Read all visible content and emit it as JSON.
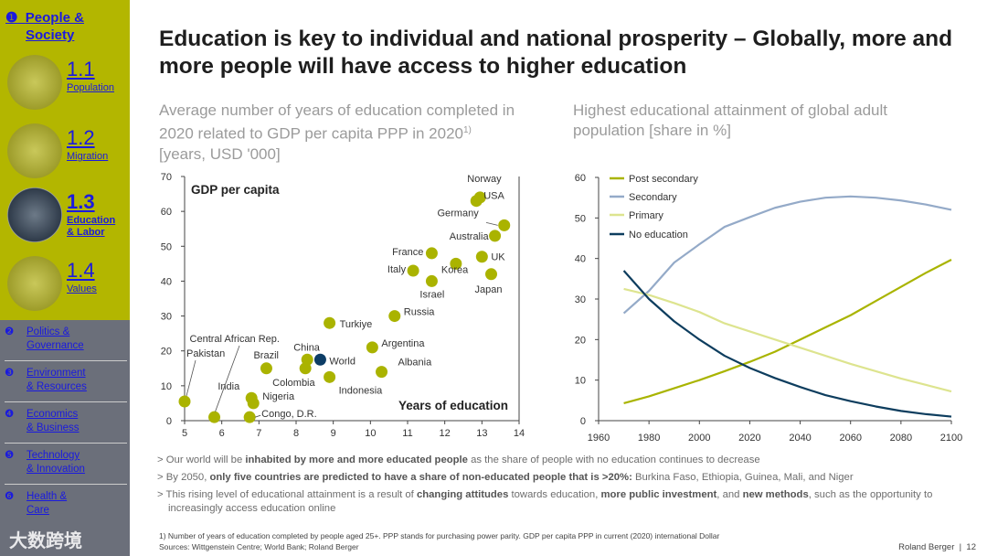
{
  "sidebar": {
    "section1": {
      "bullet": "❶",
      "label_line1": "People &",
      "label_line2": "Society"
    },
    "subs": [
      {
        "num": "1.1",
        "label": "Population"
      },
      {
        "num": "1.2",
        "label": "Migration"
      },
      {
        "num": "1.3",
        "label": "Education",
        "label2": "& Labor"
      },
      {
        "num": "1.4",
        "label": "Values"
      }
    ],
    "others": [
      {
        "bullet": "❷",
        "l1": "Politics &",
        "l2": "Governance"
      },
      {
        "bullet": "❸",
        "l1": "Environment",
        "l2": "& Resources"
      },
      {
        "bullet": "❹",
        "l1": "Economics",
        "l2": "& Business"
      },
      {
        "bullet": "❺",
        "l1": "Technology",
        "l2": "& Innovation"
      },
      {
        "bullet": "❻",
        "l1": "Health &",
        "l2": "Care"
      }
    ],
    "watermark": "大数跨境"
  },
  "title": "Education is key to individual and national prosperity – Globally, more and more people will have access to higher education",
  "chart_data": [
    {
      "type": "scatter",
      "title": "Average number of years of education completed in 2020 related to GDP per capita PPP in 2020",
      "title_sup": "1)",
      "units": "[years, USD '000]",
      "xlabel": "Years of education",
      "ylabel": "GDP per capita",
      "xlim": [
        5,
        14
      ],
      "ylim": [
        0,
        70
      ],
      "xticks": [
        5,
        6,
        7,
        8,
        9,
        10,
        11,
        12,
        13,
        14
      ],
      "yticks": [
        0,
        10,
        20,
        30,
        40,
        50,
        60,
        70
      ],
      "points": [
        {
          "name": "Norway",
          "x": 12.95,
          "y": 64
        },
        {
          "name": "USA",
          "x": 12.85,
          "y": 63
        },
        {
          "name": "Germany",
          "x": 13.6,
          "y": 56
        },
        {
          "name": "Australia",
          "x": 13.35,
          "y": 53
        },
        {
          "name": "France",
          "x": 11.65,
          "y": 48
        },
        {
          "name": "UK",
          "x": 13.0,
          "y": 47
        },
        {
          "name": "Korea",
          "x": 12.3,
          "y": 45
        },
        {
          "name": "Italy",
          "x": 11.15,
          "y": 43
        },
        {
          "name": "Japan",
          "x": 13.25,
          "y": 42
        },
        {
          "name": "Israel",
          "x": 11.65,
          "y": 40
        },
        {
          "name": "Russia",
          "x": 10.65,
          "y": 30
        },
        {
          "name": "Turkiye",
          "x": 8.9,
          "y": 28
        },
        {
          "name": "Argentina",
          "x": 10.05,
          "y": 21
        },
        {
          "name": "China",
          "x": 8.3,
          "y": 17.5
        },
        {
          "name": "World",
          "x": 8.65,
          "y": 17.5,
          "highlight": true
        },
        {
          "name": "Colombia",
          "x": 8.25,
          "y": 15
        },
        {
          "name": "Brazil",
          "x": 7.2,
          "y": 15
        },
        {
          "name": "Albania",
          "x": 10.3,
          "y": 14
        },
        {
          "name": "Indonesia",
          "x": 8.9,
          "y": 12.5
        },
        {
          "name": "India",
          "x": 6.8,
          "y": 6.5
        },
        {
          "name": "Nigeria",
          "x": 6.85,
          "y": 5
        },
        {
          "name": "Pakistan",
          "x": 5.0,
          "y": 5.5
        },
        {
          "name": "Central African Rep.",
          "x": 5.8,
          "y": 1
        },
        {
          "name": "Congo, D.R.",
          "x": 6.75,
          "y": 1
        }
      ],
      "colors": {
        "point": "#aab300",
        "highlight": "#0d3d66"
      }
    },
    {
      "type": "line",
      "title": "Highest educational attainment of global adult population [share in %]",
      "xlim": [
        1960,
        2100
      ],
      "ylim": [
        0,
        60
      ],
      "xticks": [
        1960,
        1980,
        2000,
        2020,
        2040,
        2060,
        2080,
        2100
      ],
      "yticks": [
        0,
        10,
        20,
        30,
        40,
        50,
        60
      ],
      "legend": "top-left",
      "x": [
        1970,
        1980,
        1990,
        2000,
        2010,
        2020,
        2030,
        2040,
        2050,
        2060,
        2070,
        2080,
        2090,
        2100
      ],
      "series": [
        {
          "name": "Post secondary",
          "color": "#a9b400",
          "values": [
            4.3,
            6,
            8,
            10,
            12.2,
            14.5,
            17,
            20,
            23,
            26,
            29.5,
            33,
            36.5,
            39.7
          ]
        },
        {
          "name": "Secondary",
          "color": "#94aac8",
          "values": [
            26.5,
            32,
            39,
            43.5,
            47.8,
            50.2,
            52.5,
            54,
            55,
            55.3,
            55,
            54.3,
            53.3,
            52
          ]
        },
        {
          "name": "Primary",
          "color": "#dde48f",
          "values": [
            32.5,
            31,
            29,
            26.8,
            24,
            22,
            20,
            18,
            16,
            14,
            12.2,
            10.4,
            8.8,
            7.2
          ]
        },
        {
          "name": "No education",
          "color": "#0d3d5e",
          "values": [
            37,
            30,
            24.5,
            20,
            16,
            13,
            10.5,
            8.3,
            6.3,
            4.8,
            3.5,
            2.4,
            1.6,
            1
          ]
        }
      ]
    }
  ],
  "bullets": [
    {
      "pre": "Our world will be ",
      "b1": "inhabited by more and more educated people",
      "post": " as the share of people with no education continues to decrease"
    },
    {
      "pre": "By 2050, ",
      "b1": "only five countries are predicted to have a share of non-educated people that is >20%:",
      "post": " Burkina Faso, Ethiopia, Guinea, Mali, and Niger"
    },
    {
      "pre": "This rising level of educational attainment is a result of ",
      "b1": "changing attitudes",
      "mid": " towards education, ",
      "b2": "more public investment",
      "mid2": ", and ",
      "b3": "new methods",
      "post": ", such as the opportunity to increasingly access education online"
    }
  ],
  "footnote": "1) Number of years of education completed by people aged 25+. PPP stands for purchasing power parity. GDP per capita PPP in current (2020) international Dollar",
  "sources": "Sources: Wittgenstein Centre; World Bank; Roland Berger",
  "brand": "Roland Berger",
  "page": "12"
}
